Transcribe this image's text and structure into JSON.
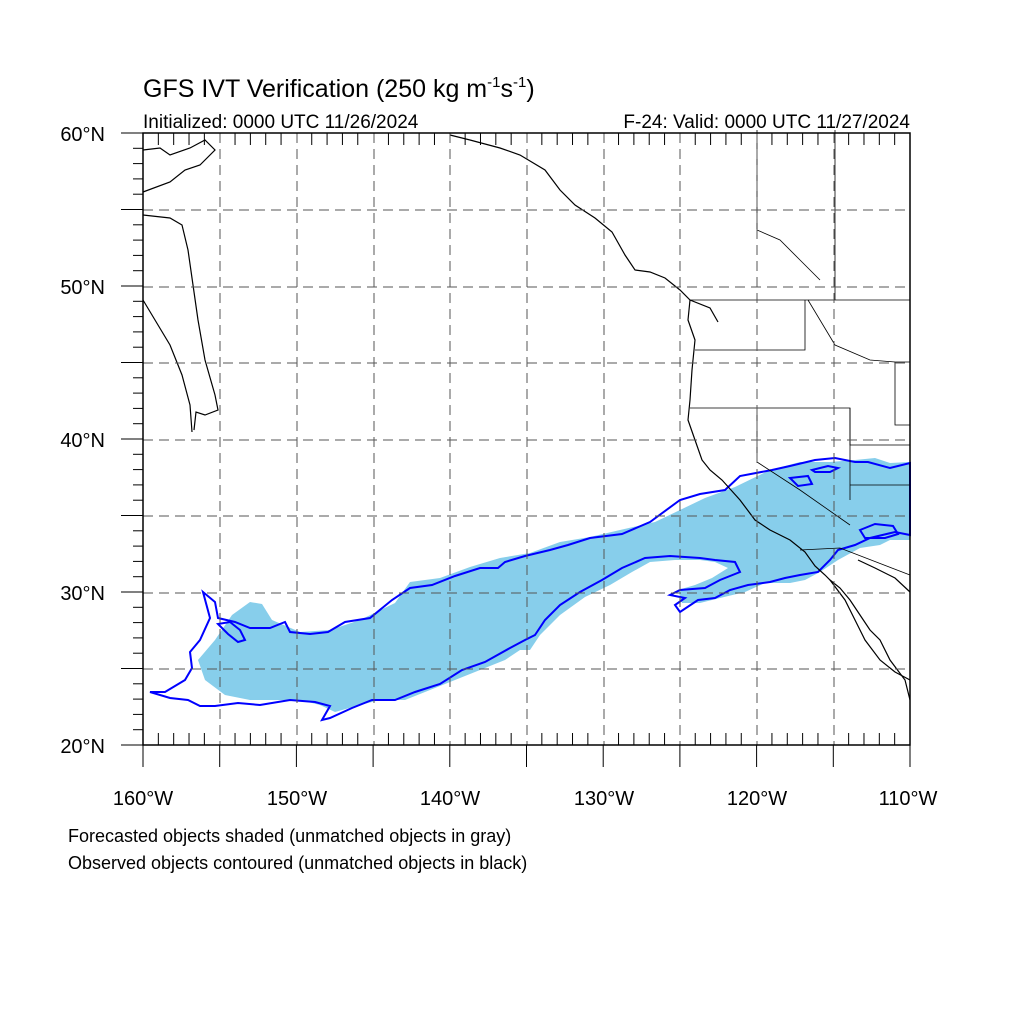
{
  "title": {
    "main": "GFS IVT Verification (250 kg m",
    "exp1": "-1",
    "mid": "s",
    "exp2": "-1",
    "end": ")"
  },
  "initialized": "Initialized: 0000 UTC 11/26/2024",
  "valid": "F-24: Valid: 0000 UTC 11/27/2024",
  "map": {
    "lon_range": [
      -160,
      -110
    ],
    "lat_range": [
      20,
      60
    ],
    "grid": "dashed every 5 degrees",
    "lat_labels": [
      "60°N",
      "50°N",
      "40°N",
      "30°N",
      "20°N"
    ],
    "lon_labels": [
      "160°W",
      "150°W",
      "140°W",
      "130°W",
      "120°W",
      "110°W"
    ],
    "forecast_fill_color": "#87ceeb",
    "observed_contour_color": "#0000ff",
    "coastline_color": "#000000"
  },
  "notes": {
    "line1": "Forecasted objects shaded (unmatched objects in gray)",
    "line2": "Observed objects contoured (unmatched objects in black)"
  }
}
